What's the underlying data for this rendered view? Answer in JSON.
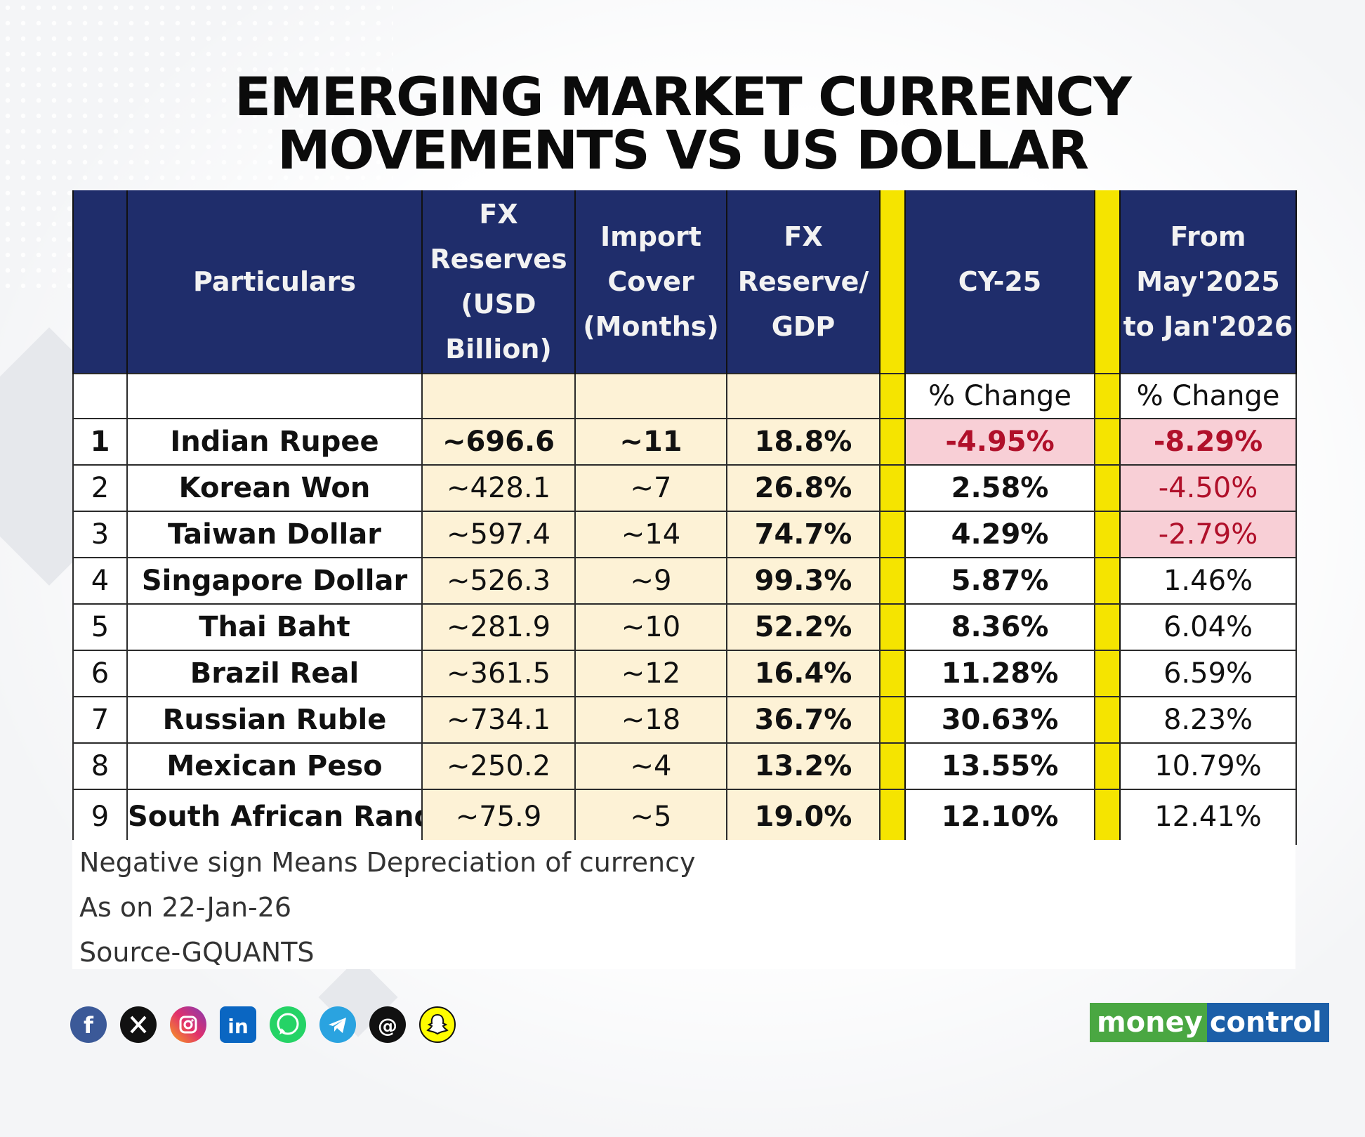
{
  "title": {
    "line1": "EMERGING MARKET CURRENCY",
    "line2": "MOVEMENTS VS US DOLLAR"
  },
  "headers": {
    "particulars": "Particulars",
    "fx_reserves": "FX Reserves (USD Billion)",
    "import_cover": "Import Cover (Months)",
    "fx_gdp": "FX Reserve/ GDP",
    "cy25": "CY-25",
    "may_jan": "From May'2025 to Jan'2026",
    "pct_change_1": "% Change",
    "pct_change_2": "% Change"
  },
  "colors": {
    "header_bg": "#1f2d6b",
    "separator_yellow": "#f5e400",
    "cream": "#fdf2d6",
    "negative_highlight": "#f8cfd6",
    "negative_text": "#b0102a"
  },
  "chart_data": {
    "type": "table",
    "title": "EMERGING MARKET CURRENCY MOVEMENTS VS US DOLLAR",
    "columns": [
      "",
      "Particulars",
      "FX Reserves (USD Billion)",
      "Import Cover (Months)",
      "FX Reserve/ GDP",
      "CY-25 % Change",
      "From May'2025 to Jan'2026 % Change"
    ],
    "rows": [
      {
        "n": "1",
        "name": "Indian Rupee",
        "fx": "~696.6",
        "cover": "~11",
        "gdp": "18.8%",
        "cy25": "-4.95%",
        "may": "-8.29%",
        "cy25_neg": true,
        "may_neg": true,
        "bold_row": true
      },
      {
        "n": "2",
        "name": "Korean Won",
        "fx": "~428.1",
        "cover": "~7",
        "gdp": "26.8%",
        "cy25": "2.58%",
        "may": "-4.50%",
        "cy25_neg": false,
        "may_neg": true,
        "bold_row": false
      },
      {
        "n": "3",
        "name": "Taiwan Dollar",
        "fx": "~597.4",
        "cover": "~14",
        "gdp": "74.7%",
        "cy25": "4.29%",
        "may": "-2.79%",
        "cy25_neg": false,
        "may_neg": true,
        "bold_row": false
      },
      {
        "n": "4",
        "name": "Singapore Dollar",
        "fx": "~526.3",
        "cover": "~9",
        "gdp": "99.3%",
        "cy25": "5.87%",
        "may": "1.46%",
        "cy25_neg": false,
        "may_neg": false,
        "bold_row": false
      },
      {
        "n": "5",
        "name": "Thai Baht",
        "fx": "~281.9",
        "cover": "~10",
        "gdp": "52.2%",
        "cy25": "8.36%",
        "may": "6.04%",
        "cy25_neg": false,
        "may_neg": false,
        "bold_row": false
      },
      {
        "n": "6",
        "name": "Brazil Real",
        "fx": "~361.5",
        "cover": "~12",
        "gdp": "16.4%",
        "cy25": "11.28%",
        "may": "6.59%",
        "cy25_neg": false,
        "may_neg": false,
        "bold_row": false
      },
      {
        "n": "7",
        "name": "Russian Ruble",
        "fx": "~734.1",
        "cover": "~18",
        "gdp": "36.7%",
        "cy25": "30.63%",
        "may": "8.23%",
        "cy25_neg": false,
        "may_neg": false,
        "bold_row": false
      },
      {
        "n": "8",
        "name": "Mexican Peso",
        "fx": "~250.2",
        "cover": "~4",
        "gdp": "13.2%",
        "cy25": "13.55%",
        "may": "10.79%",
        "cy25_neg": false,
        "may_neg": false,
        "bold_row": false
      },
      {
        "n": "9",
        "name": "South African Rand",
        "fx": "~75.9",
        "cover": "~5",
        "gdp": "19.0%",
        "cy25": "12.10%",
        "may": "12.41%",
        "cy25_neg": false,
        "may_neg": false,
        "bold_row": false
      }
    ]
  },
  "notes": {
    "line1": "Negative sign Means Depreciation of currency",
    "line2": "As on 22-Jan-26",
    "line3": "Source-GQUANTS"
  },
  "social_icons": [
    "facebook-icon",
    "x-icon",
    "instagram-icon",
    "linkedin-icon",
    "whatsapp-icon",
    "telegram-icon",
    "threads-icon",
    "snapchat-icon"
  ],
  "logo": {
    "part1": "money",
    "part2": "control"
  }
}
